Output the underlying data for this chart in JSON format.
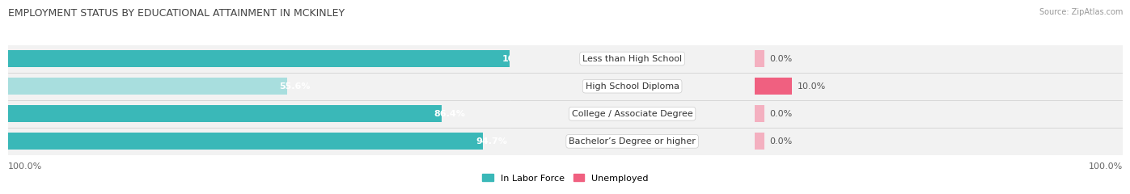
{
  "title": "EMPLOYMENT STATUS BY EDUCATIONAL ATTAINMENT IN MCKINLEY",
  "source": "Source: ZipAtlas.com",
  "categories": [
    "Less than High School",
    "High School Diploma",
    "College / Associate Degree",
    "Bachelor’s Degree or higher"
  ],
  "labor_force_values": [
    100.0,
    55.6,
    86.4,
    94.7
  ],
  "unemployed_values": [
    0.0,
    10.0,
    0.0,
    0.0
  ],
  "labor_force_color": "#3ab8b8",
  "labor_force_color_light": "#a8dede",
  "unemployed_color": "#f06080",
  "unemployed_color_light": "#f4b0c0",
  "row_bg_color": "#efefef",
  "row_border_color": "#d0d0d0",
  "axis_max": 100,
  "x_bottom_left": "100.0%",
  "x_bottom_right": "100.0%",
  "legend_labor": "In Labor Force",
  "legend_unemployed": "Unemployed",
  "title_fontsize": 9,
  "source_fontsize": 7,
  "bar_label_fontsize": 8,
  "category_fontsize": 8,
  "axis_label_fontsize": 8
}
